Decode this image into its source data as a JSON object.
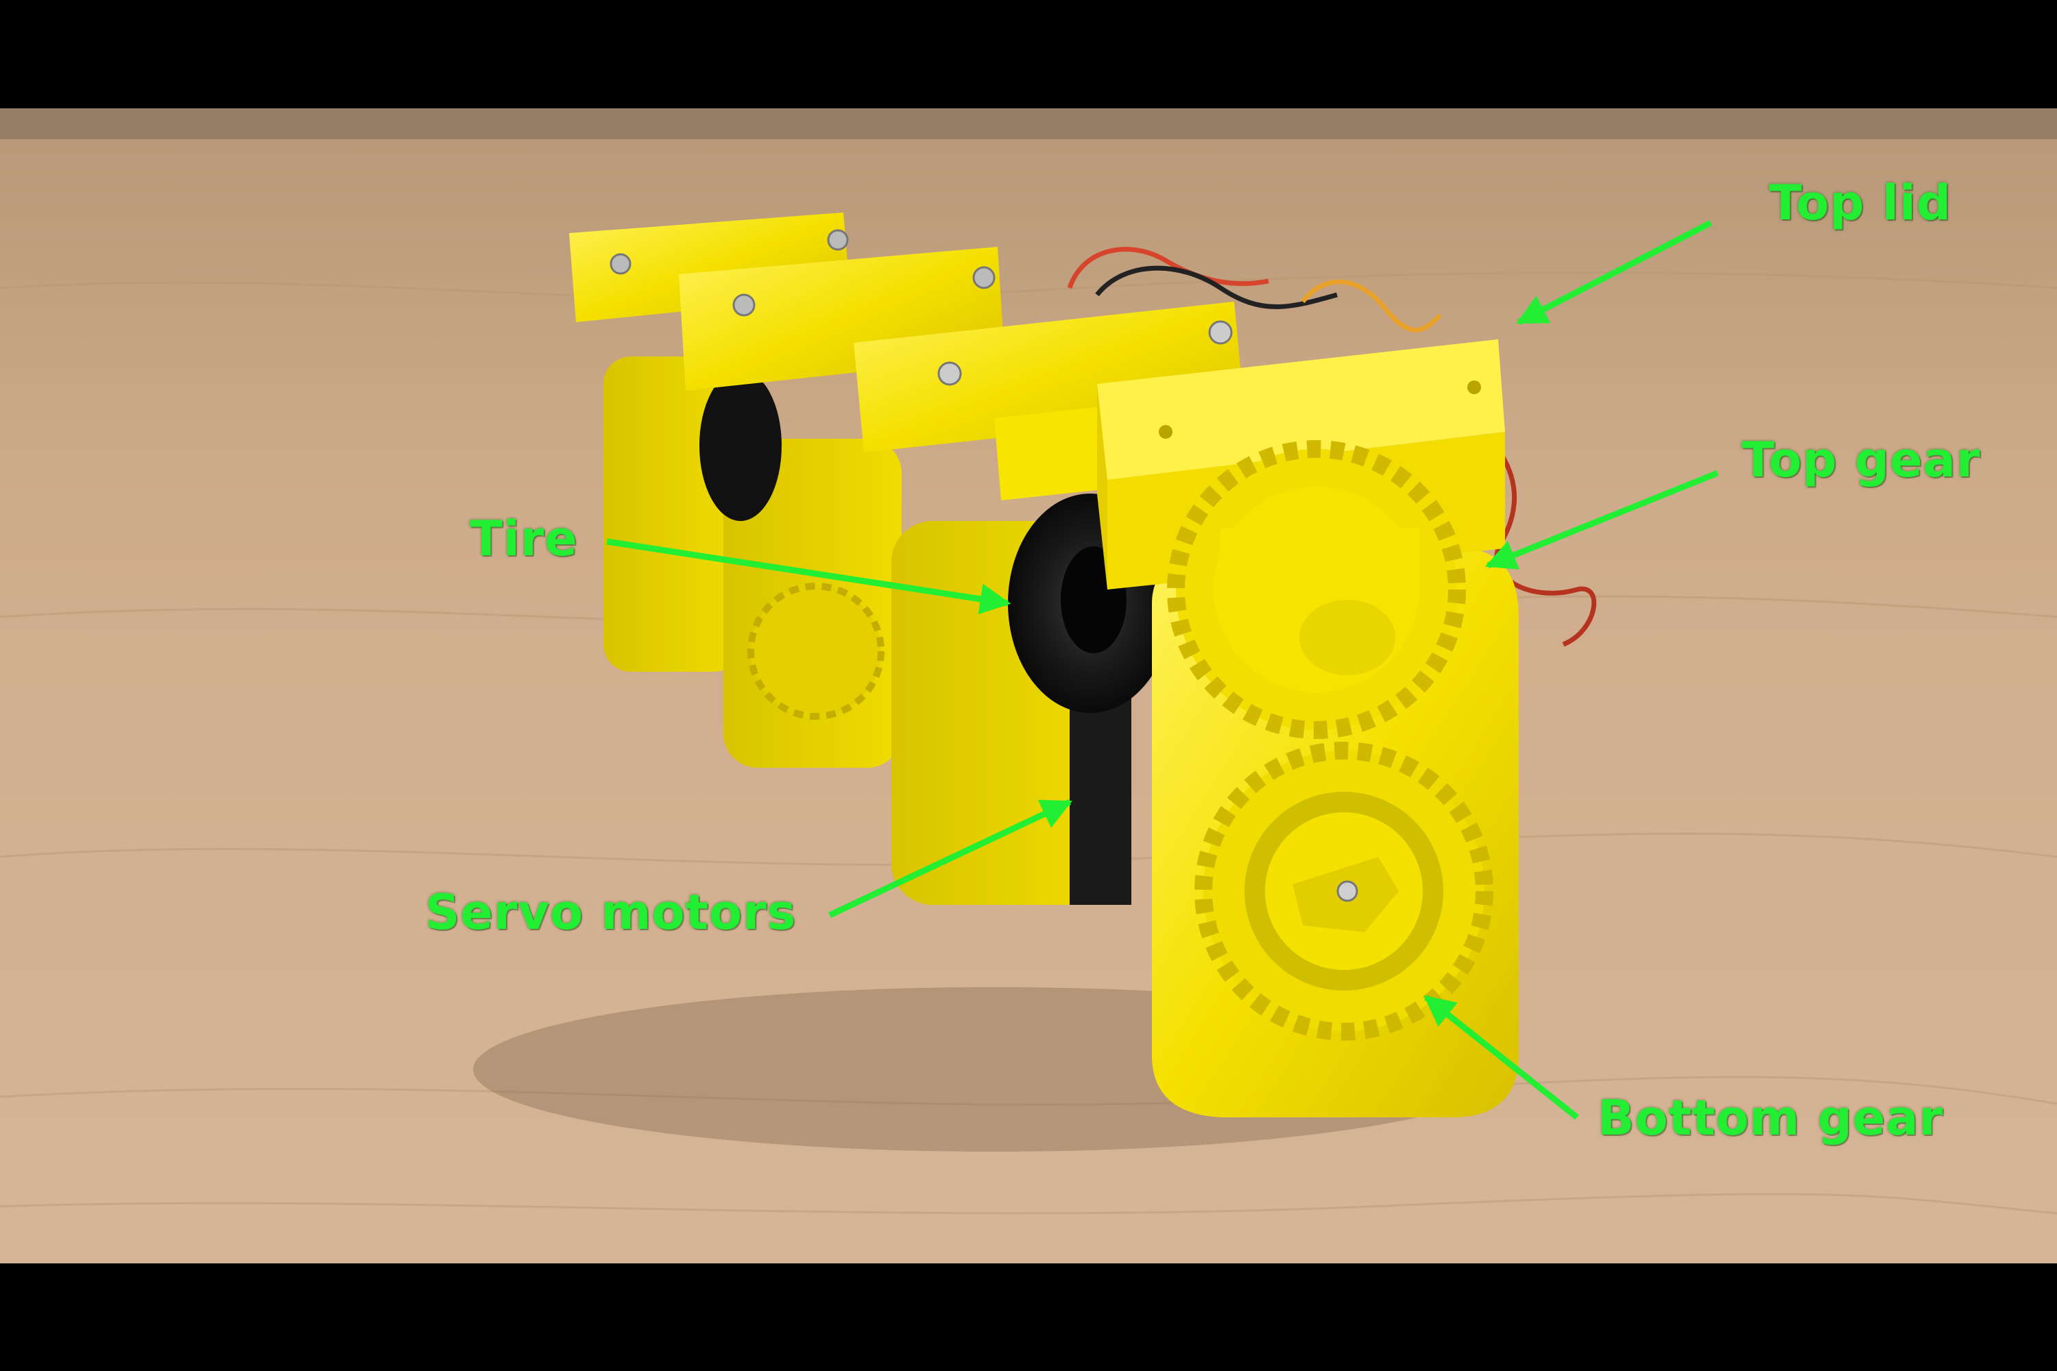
{
  "photo": {
    "subject": "3d-printed-modular-robot",
    "colors": {
      "label_green": "#22ee33",
      "plastic_yellow": "#f7e400",
      "table_wood": "#cda98a",
      "letterbox": "#000000"
    }
  },
  "annotations": {
    "top_lid": "Top lid",
    "top_gear": "Top gear",
    "tire": "Tire",
    "servo_motors": "Servo motors",
    "bottom_gear": "Bottom gear"
  }
}
